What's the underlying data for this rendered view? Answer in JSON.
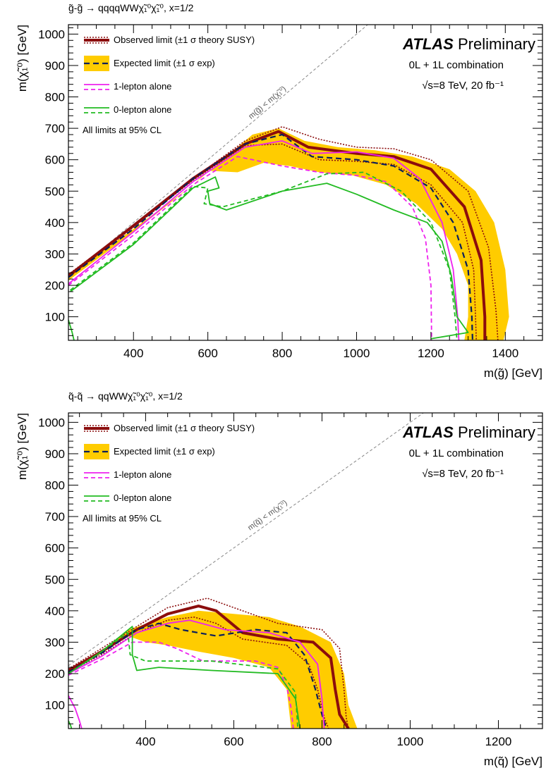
{
  "chart_data": [
    {
      "type": "line",
      "title": "g̃-g̃ → qqqqWWχ̃₁⁰χ̃₁⁰, x=1/2",
      "xlabel": "m(g̃) [GeV]",
      "ylabel": "m(χ̃₁⁰) [GeV]",
      "xlim": [
        225,
        1500
      ],
      "ylim": [
        25,
        1030
      ],
      "xticks": [
        400,
        600,
        800,
        1000,
        1200,
        1400
      ],
      "yticks": [
        100,
        200,
        300,
        400,
        500,
        600,
        700,
        800,
        900,
        1000
      ],
      "atlas_label": "ATLAS",
      "prelim_label": "Preliminary",
      "info_lines": [
        "0L + 1L combination",
        "√s=8 TeV, 20 fb⁻¹"
      ],
      "diagonal_label": "m(g̃) < m(χ̃₁⁰)",
      "legend": [
        {
          "label": "Observed limit (±1 σ theory SUSY)",
          "style": "observed"
        },
        {
          "label": "Expected limit (±1 σ exp)",
          "style": "expected"
        },
        {
          "label": "1-lepton alone",
          "style": "onelep"
        },
        {
          "label": "0-lepton alone",
          "style": "zerolep"
        }
      ],
      "legend_note": "All limits at 95% CL",
      "band": [
        [
          225,
          230
        ],
        [
          400,
          380
        ],
        [
          560,
          520
        ],
        [
          650,
          610
        ],
        [
          720,
          680
        ],
        [
          790,
          700
        ],
        [
          860,
          660
        ],
        [
          950,
          640
        ],
        [
          1050,
          630
        ],
        [
          1150,
          610
        ],
        [
          1250,
          570
        ],
        [
          1320,
          500
        ],
        [
          1370,
          400
        ],
        [
          1400,
          250
        ],
        [
          1410,
          100
        ],
        [
          1395,
          25
        ],
        [
          1290,
          25
        ],
        [
          1300,
          100
        ],
        [
          1300,
          200
        ],
        [
          1270,
          300
        ],
        [
          1230,
          380
        ],
        [
          1160,
          460
        ],
        [
          1080,
          520
        ],
        [
          990,
          550
        ],
        [
          900,
          560
        ],
        [
          820,
          580
        ],
        [
          750,
          590
        ],
        [
          680,
          560
        ],
        [
          600,
          565
        ],
        [
          560,
          520
        ],
        [
          400,
          370
        ],
        [
          225,
          215
        ]
      ],
      "series": [
        {
          "name": "Observed limit",
          "style": "observed",
          "x": [
            225,
            400,
            560,
            700,
            790,
            870,
            1000,
            1100,
            1200,
            1290,
            1335,
            1345,
            1345
          ],
          "y": [
            230,
            390,
            540,
            650,
            690,
            640,
            620,
            610,
            570,
            450,
            280,
            100,
            25
          ]
        },
        {
          "name": "Observed +1σ",
          "style": "observed_band",
          "x": [
            225,
            400,
            560,
            700,
            800,
            900,
            1000,
            1100,
            1200,
            1300,
            1355,
            1375,
            1380
          ],
          "y": [
            235,
            390,
            540,
            660,
            705,
            665,
            640,
            635,
            600,
            500,
            320,
            120,
            25
          ]
        },
        {
          "name": "Observed −1σ",
          "style": "observed_band",
          "x": [
            225,
            400,
            560,
            700,
            800,
            900,
            1000,
            1100,
            1200,
            1285,
            1315,
            1320,
            1322
          ],
          "y": [
            225,
            385,
            535,
            645,
            650,
            600,
            595,
            585,
            520,
            400,
            250,
            100,
            25
          ]
        },
        {
          "name": "Expected limit",
          "style": "expected",
          "x": [
            225,
            400,
            560,
            700,
            800,
            880,
            1000,
            1100,
            1200,
            1260,
            1300,
            1310,
            1312
          ],
          "y": [
            225,
            380,
            540,
            650,
            680,
            610,
            600,
            580,
            510,
            400,
            250,
            100,
            25
          ]
        },
        {
          "name": "1-lepton alone",
          "style": "onelep",
          "x": [
            225,
            400,
            560,
            700,
            800,
            880,
            1000,
            1100,
            1170,
            1230,
            1260,
            1272,
            1275
          ],
          "y": [
            205,
            370,
            530,
            640,
            660,
            620,
            625,
            605,
            540,
            400,
            250,
            100,
            25
          ]
        },
        {
          "name": "1-lepton expected",
          "style": "onelep_dash",
          "x": [
            225,
            400,
            560,
            680,
            800,
            900,
            1000,
            1080,
            1150,
            1185,
            1200,
            1202
          ],
          "y": [
            200,
            360,
            520,
            610,
            580,
            560,
            550,
            530,
            450,
            350,
            200,
            25
          ]
        },
        {
          "name": "0-lepton alone",
          "style": "zerolep",
          "x": [
            230,
            400,
            560,
            620,
            630,
            600,
            605,
            650,
            800,
            920,
            1000,
            1100,
            1190,
            1230,
            1255,
            1270,
            1300,
            1200
          ],
          "y": [
            180,
            330,
            510,
            545,
            510,
            500,
            460,
            440,
            500,
            525,
            490,
            440,
            400,
            340,
            230,
            100,
            50,
            30
          ]
        },
        {
          "name": "0-lepton expected",
          "style": "zerolep_dash",
          "x": [
            230,
            400,
            560,
            600,
            590,
            640,
            800,
            920,
            1020,
            1120,
            1200,
            1250,
            1265,
            1270
          ],
          "y": [
            185,
            335,
            515,
            510,
            460,
            450,
            500,
            555,
            560,
            500,
            400,
            250,
            100,
            25
          ]
        },
        {
          "name": "0-lepton corner",
          "style": "zerolep",
          "x": [
            225,
            235,
            240
          ],
          "y": [
            90,
            50,
            25
          ]
        }
      ]
    },
    {
      "type": "line",
      "title": "q̃-q̃ → qqWWχ̃₁⁰χ̃₁⁰, x=1/2",
      "xlabel": "m(q̃) [GeV]",
      "ylabel": "m(χ̃₁⁰) [GeV]",
      "xlim": [
        225,
        1300
      ],
      "ylim": [
        25,
        1030
      ],
      "xticks": [
        400,
        600,
        800,
        1000,
        1200
      ],
      "yticks": [
        100,
        200,
        300,
        400,
        500,
        600,
        700,
        800,
        900,
        1000
      ],
      "atlas_label": "ATLAS",
      "prelim_label": "Preliminary",
      "info_lines": [
        "0L + 1L combination",
        "√s=8 TeV, 20 fb⁻¹"
      ],
      "diagonal_label": "m(q̃) < m(χ̃₁⁰)",
      "legend": [
        {
          "label": "Observed limit (±1 σ theory SUSY)",
          "style": "observed"
        },
        {
          "label": "Expected limit (±1 σ exp)",
          "style": "expected"
        },
        {
          "label": "1-lepton alone",
          "style": "onelep"
        },
        {
          "label": "0-lepton alone",
          "style": "zerolep"
        }
      ],
      "legend_note": "All limits at 95% CL",
      "band": [
        [
          225,
          210
        ],
        [
          300,
          270
        ],
        [
          360,
          340
        ],
        [
          450,
          380
        ],
        [
          520,
          400
        ],
        [
          600,
          390
        ],
        [
          680,
          380
        ],
        [
          750,
          350
        ],
        [
          820,
          300
        ],
        [
          850,
          200
        ],
        [
          860,
          100
        ],
        [
          880,
          25
        ],
        [
          730,
          25
        ],
        [
          720,
          150
        ],
        [
          680,
          220
        ],
        [
          600,
          250
        ],
        [
          520,
          270
        ],
        [
          450,
          290
        ],
        [
          400,
          300
        ],
        [
          360,
          320
        ],
        [
          300,
          265
        ],
        [
          225,
          200
        ]
      ],
      "series": [
        {
          "name": "Observed limit",
          "style": "observed",
          "x": [
            225,
            300,
            380,
            450,
            520,
            560,
            620,
            700,
            780,
            820,
            830,
            840,
            860
          ],
          "y": [
            210,
            270,
            340,
            390,
            415,
            400,
            330,
            310,
            300,
            250,
            150,
            70,
            25
          ]
        },
        {
          "name": "Observed +1σ",
          "style": "observed_band",
          "x": [
            225,
            300,
            380,
            450,
            540,
            580,
            700,
            800,
            840,
            850,
            855,
            860
          ],
          "y": [
            215,
            280,
            350,
            410,
            440,
            420,
            360,
            340,
            280,
            150,
            60,
            25
          ]
        },
        {
          "name": "Observed −1σ",
          "style": "observed_band",
          "x": [
            225,
            300,
            380,
            450,
            510,
            560,
            620,
            720,
            770,
            790,
            805,
            815
          ],
          "y": [
            205,
            260,
            330,
            370,
            380,
            360,
            310,
            290,
            230,
            150,
            60,
            25
          ]
        },
        {
          "name": "Expected limit",
          "style": "expected",
          "x": [
            225,
            300,
            380,
            430,
            480,
            560,
            650,
            720,
            760,
            785,
            800,
            810
          ],
          "y": [
            205,
            265,
            340,
            360,
            340,
            320,
            340,
            330,
            260,
            150,
            70,
            25
          ]
        },
        {
          "name": "1-lepton alone",
          "style": "onelep",
          "x": [
            225,
            300,
            380,
            450,
            500,
            580,
            680,
            750,
            790,
            800,
            805
          ],
          "y": [
            200,
            255,
            330,
            360,
            370,
            340,
            330,
            300,
            230,
            120,
            25
          ]
        },
        {
          "name": "1-lepton expected",
          "style": "onelep_dash",
          "x": [
            225,
            300,
            370,
            430,
            470,
            530,
            650,
            700,
            720,
            730,
            735
          ],
          "y": [
            195,
            245,
            300,
            300,
            280,
            240,
            240,
            220,
            160,
            90,
            25
          ]
        },
        {
          "name": "1-lepton corner",
          "style": "onelep",
          "x": [
            225,
            240,
            250,
            255
          ],
          "y": [
            130,
            90,
            50,
            25
          ]
        },
        {
          "name": "0-lepton alone",
          "style": "zerolep",
          "x": [
            225,
            300,
            370,
            370,
            380,
            430,
            550,
            700,
            740,
            750
          ],
          "y": [
            200,
            270,
            350,
            260,
            210,
            220,
            210,
            200,
            120,
            25
          ]
        },
        {
          "name": "0-lepton expected",
          "style": "zerolep_dash",
          "x": [
            225,
            300,
            360,
            365,
            400,
            550,
            700,
            740,
            745
          ],
          "y": [
            200,
            270,
            330,
            260,
            240,
            240,
            215,
            140,
            25
          ]
        },
        {
          "name": "0-lepton corner",
          "style": "zerolep",
          "x": [
            225,
            230,
            232
          ],
          "y": [
            50,
            35,
            25
          ]
        }
      ]
    }
  ],
  "colors": {
    "observed": "#8b0d0d",
    "band": "#ffcc00",
    "expected": "#0a1f5c",
    "onelep": "#ee22ee",
    "zerolep": "#22bb22",
    "diagonal": "#888888"
  }
}
